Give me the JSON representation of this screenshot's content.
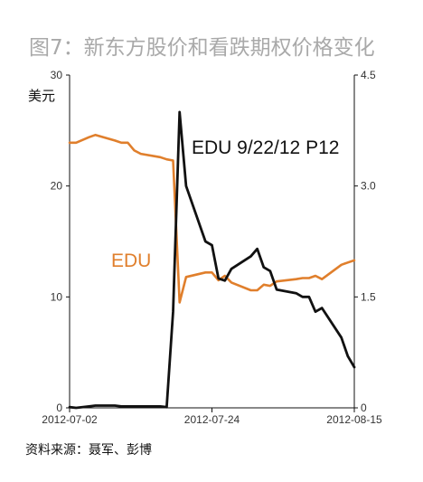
{
  "title": "图7：新东方股价和看跌期权价格变化",
  "unit": "美元",
  "source": "资料来源：聂军、彭博",
  "colors": {
    "edu_stock": "#e07f2c",
    "option": "#111111",
    "axis": "#111111"
  },
  "chart_data": {
    "type": "line",
    "title": "图7：新东方股价和看跌期权价格变化",
    "left_axis": {
      "label": "美元",
      "ticks": [
        "0",
        "10",
        "20",
        "30"
      ],
      "range": [
        0,
        30
      ]
    },
    "right_axis": {
      "ticks": [
        "0",
        "1.5",
        "3.0",
        "4.5"
      ],
      "range": [
        0,
        4.5
      ]
    },
    "x_ticks": [
      "2012-07-02",
      "2012-07-24",
      "2012-08-15"
    ],
    "x_range": [
      "2012-07-02",
      "2012-08-15"
    ],
    "grid": false,
    "series": [
      {
        "name": "EDU",
        "axis": "left",
        "points": [
          [
            "2012-07-02",
            23.9
          ],
          [
            "2012-07-03",
            23.9
          ],
          [
            "2012-07-05",
            24.4
          ],
          [
            "2012-07-06",
            24.6
          ],
          [
            "2012-07-09",
            24.1
          ],
          [
            "2012-07-10",
            23.9
          ],
          [
            "2012-07-11",
            23.9
          ],
          [
            "2012-07-12",
            23.2
          ],
          [
            "2012-07-13",
            22.9
          ],
          [
            "2012-07-16",
            22.6
          ],
          [
            "2012-07-17",
            22.4
          ],
          [
            "2012-07-18",
            22.3
          ],
          [
            "2012-07-19",
            9.5
          ],
          [
            "2012-07-20",
            11.8
          ],
          [
            "2012-07-23",
            12.2
          ],
          [
            "2012-07-24",
            12.2
          ],
          [
            "2012-07-25",
            11.5
          ],
          [
            "2012-07-26",
            11.9
          ],
          [
            "2012-07-27",
            11.3
          ],
          [
            "2012-07-30",
            10.6
          ],
          [
            "2012-07-31",
            10.6
          ],
          [
            "2012-08-01",
            11.1
          ],
          [
            "2012-08-02",
            11.0
          ],
          [
            "2012-08-03",
            11.4
          ],
          [
            "2012-08-06",
            11.6
          ],
          [
            "2012-08-07",
            11.7
          ],
          [
            "2012-08-08",
            11.7
          ],
          [
            "2012-08-09",
            11.9
          ],
          [
            "2012-08-10",
            11.6
          ],
          [
            "2012-08-13",
            12.9
          ],
          [
            "2012-08-14",
            13.1
          ],
          [
            "2012-08-15",
            13.3
          ]
        ]
      },
      {
        "name": "EDU 9/22/12 P12",
        "axis": "right",
        "points": [
          [
            "2012-07-02",
            0.01
          ],
          [
            "2012-07-03",
            0.0
          ],
          [
            "2012-07-05",
            0.02
          ],
          [
            "2012-07-06",
            0.03
          ],
          [
            "2012-07-09",
            0.03
          ],
          [
            "2012-07-10",
            0.02
          ],
          [
            "2012-07-11",
            0.02
          ],
          [
            "2012-07-12",
            0.02
          ],
          [
            "2012-07-13",
            0.02
          ],
          [
            "2012-07-16",
            0.02
          ],
          [
            "2012-07-17",
            0.01
          ],
          [
            "2012-07-18",
            1.3
          ],
          [
            "2012-07-19",
            4.0
          ],
          [
            "2012-07-20",
            3.0
          ],
          [
            "2012-07-23",
            2.25
          ],
          [
            "2012-07-24",
            2.2
          ],
          [
            "2012-07-25",
            1.75
          ],
          [
            "2012-07-26",
            1.72
          ],
          [
            "2012-07-27",
            1.88
          ],
          [
            "2012-07-30",
            2.05
          ],
          [
            "2012-07-31",
            2.15
          ],
          [
            "2012-08-01",
            1.9
          ],
          [
            "2012-08-02",
            1.85
          ],
          [
            "2012-08-03",
            1.6
          ],
          [
            "2012-08-06",
            1.55
          ],
          [
            "2012-08-07",
            1.5
          ],
          [
            "2012-08-08",
            1.5
          ],
          [
            "2012-08-09",
            1.3
          ],
          [
            "2012-08-10",
            1.35
          ],
          [
            "2012-08-13",
            0.95
          ],
          [
            "2012-08-14",
            0.7
          ],
          [
            "2012-08-15",
            0.55
          ]
        ]
      }
    ],
    "annotations": [
      "EDU",
      "EDU 9/22/12 P12"
    ]
  }
}
